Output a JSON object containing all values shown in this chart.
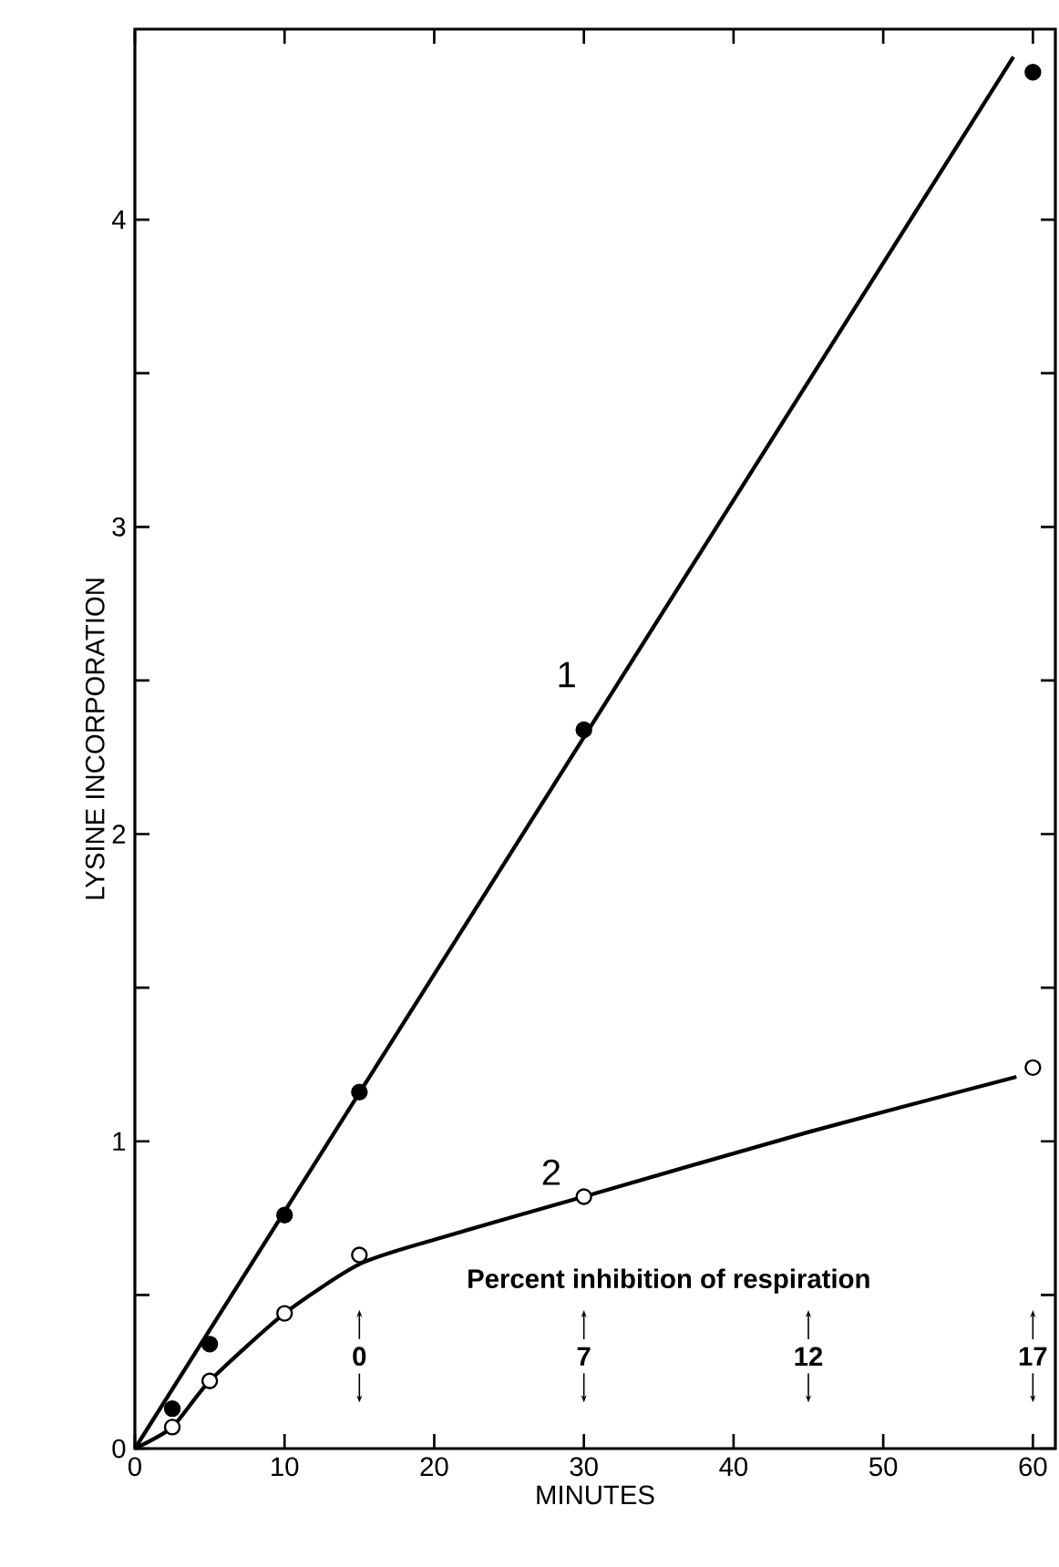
{
  "chart_data": {
    "type": "line",
    "xlabel": "MINUTES",
    "ylabel": "LYSINE  INCORPORATION",
    "series": [
      {
        "name": "1",
        "color": "#000000",
        "x": [
          0,
          58.7
        ],
        "values": [
          0,
          4.53
        ],
        "marker": "none"
      },
      {
        "name": "2",
        "color": "#000000",
        "x": [
          0,
          2.5,
          5,
          10,
          15,
          20,
          30,
          45,
          58.9
        ],
        "values": [
          0,
          0.07,
          0.22,
          0.44,
          0.6,
          0.68,
          0.82,
          1.03,
          1.21
        ],
        "marker": "none"
      },
      {
        "type": "scatter",
        "color": "#000000",
        "x": [
          2.5,
          5,
          10,
          15,
          30,
          60
        ],
        "values": [
          0.13,
          0.34,
          0.76,
          1.16,
          2.34,
          4.48
        ],
        "marker": "circle"
      },
      {
        "type": "scatter",
        "color": "#000000",
        "x": [
          2.5,
          5,
          10,
          15,
          30,
          60
        ],
        "values": [
          0.07,
          0.22,
          0.44,
          0.63,
          0.82,
          1.24
        ],
        "marker": "circle"
      }
    ],
    "annotations": [
      "Percent inhibition of respiration",
      "0",
      "7",
      "12",
      "17"
    ],
    "xlim": [
      0,
      61.5
    ],
    "ylim": [
      0,
      4.62
    ],
    "xticks": [
      0,
      10,
      20,
      30,
      40,
      50,
      60
    ],
    "yticks": [
      0,
      {
        "value": 0.5,
        "label": null
      },
      1,
      {
        "value": 1.5,
        "label": null
      },
      2,
      {
        "value": 2.5,
        "label": null
      },
      3,
      {
        "value": 3.5,
        "label": null
      },
      4
    ],
    "grid": false
  }
}
